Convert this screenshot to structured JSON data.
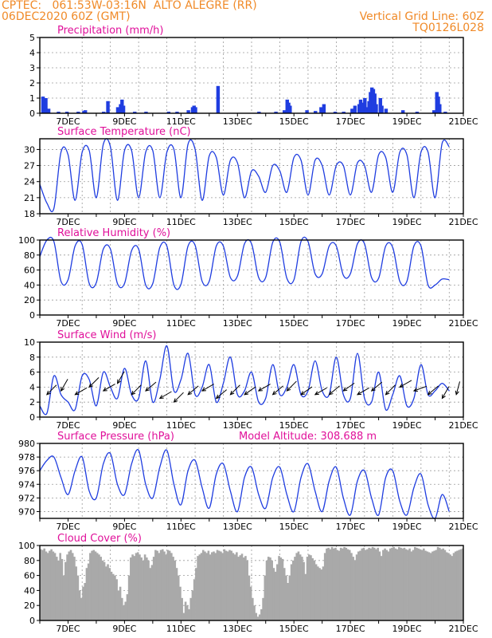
{
  "header": {
    "line1_left": "CPTEC:   061:53W-03:16N  ALTO ALEGRE (RR)",
    "line2_left": "06DEC2020 60Z (GMT)",
    "line1_right": "Vertical Grid Line: 60Z",
    "line2_right": "TQ0126L028"
  },
  "colors": {
    "header": "#f08a28",
    "title": "#e0109a",
    "series": "#1f3de0",
    "cloud": "#a9a9a9"
  },
  "x_ticks": [
    "7DEC",
    "9DEC",
    "11DEC",
    "13DEC",
    "15DEC",
    "17DEC",
    "19DEC",
    "21DEC"
  ],
  "chart_data": [
    {
      "id": "precip",
      "type": "bar",
      "title": "Precipitation (mm/h)",
      "ylim": [
        0,
        5
      ],
      "yticks": [
        0,
        1,
        2,
        3,
        4,
        5
      ],
      "xlim_days": [
        6.0,
        21.0
      ],
      "points": [
        [
          6.05,
          1.1
        ],
        [
          6.1,
          0.6
        ],
        [
          6.15,
          1.0
        ],
        [
          6.25,
          0.3
        ],
        [
          6.6,
          0.1
        ],
        [
          6.9,
          0.1
        ],
        [
          7.3,
          0.1
        ],
        [
          7.5,
          0.15
        ],
        [
          7.55,
          0.2
        ],
        [
          8.2,
          0.1
        ],
        [
          8.35,
          0.8
        ],
        [
          8.7,
          0.4
        ],
        [
          8.8,
          0.6
        ],
        [
          8.85,
          0.9
        ],
        [
          8.9,
          0.5
        ],
        [
          9.3,
          0.1
        ],
        [
          9.7,
          0.1
        ],
        [
          10.5,
          0.1
        ],
        [
          10.8,
          0.1
        ],
        [
          11.2,
          0.2
        ],
        [
          11.35,
          0.4
        ],
        [
          11.4,
          0.5
        ],
        [
          11.45,
          0.4
        ],
        [
          12.25,
          1.8
        ],
        [
          13.7,
          0.1
        ],
        [
          14.3,
          0.1
        ],
        [
          14.6,
          0.2
        ],
        [
          14.7,
          0.9
        ],
        [
          14.75,
          0.7
        ],
        [
          14.8,
          0.5
        ],
        [
          15.4,
          0.2
        ],
        [
          15.7,
          0.15
        ],
        [
          15.9,
          0.4
        ],
        [
          16.0,
          0.6
        ],
        [
          16.4,
          0.1
        ],
        [
          16.7,
          0.1
        ],
        [
          17.0,
          0.3
        ],
        [
          17.1,
          0.5
        ],
        [
          17.25,
          0.6
        ],
        [
          17.3,
          0.9
        ],
        [
          17.35,
          0.7
        ],
        [
          17.45,
          1.0
        ],
        [
          17.5,
          0.4
        ],
        [
          17.6,
          0.8
        ],
        [
          17.65,
          1.4
        ],
        [
          17.7,
          1.7
        ],
        [
          17.75,
          1.6
        ],
        [
          17.8,
          1.3
        ],
        [
          17.85,
          0.6
        ],
        [
          18.0,
          1.0
        ],
        [
          18.05,
          0.5
        ],
        [
          18.2,
          0.3
        ],
        [
          18.8,
          0.2
        ],
        [
          19.3,
          0.1
        ],
        [
          19.9,
          0.2
        ],
        [
          20.0,
          1.4
        ],
        [
          20.05,
          1.1
        ],
        [
          20.1,
          0.6
        ],
        [
          20.3,
          0.1
        ]
      ]
    },
    {
      "id": "temp",
      "type": "line",
      "title": "Surface Temperature (nC)",
      "ylim": [
        18,
        32
      ],
      "yticks": [
        18,
        21,
        24,
        27,
        30
      ],
      "x_start": 6.0,
      "x_step": 0.25,
      "values": [
        23.5,
        20.0,
        19.0,
        29.5,
        29.0,
        20.5,
        29.5,
        29.8,
        21.0,
        31.0,
        30.5,
        20.5,
        29.8,
        29.8,
        21.0,
        29.5,
        29.8,
        21.0,
        29.5,
        30.0,
        21.0,
        31.0,
        30.0,
        20.5,
        28.8,
        28.5,
        21.5,
        28.0,
        27.5,
        21.0,
        26.0,
        25.0,
        22.0,
        27.0,
        26.0,
        22.0,
        28.5,
        28.0,
        21.5,
        28.0,
        27.0,
        21.5,
        27.0,
        27.0,
        21.5,
        27.5,
        27.0,
        22.0,
        29.0,
        28.5,
        22.0,
        29.5,
        29.0,
        21.0,
        29.5,
        29.5,
        21.0,
        31.2,
        30.5
      ]
    },
    {
      "id": "rh",
      "type": "line",
      "title": "Relative Humidity (%)",
      "ylim": [
        0,
        100
      ],
      "yticks": [
        0,
        20,
        40,
        60,
        80,
        100
      ],
      "x_start": 6.0,
      "x_step": 0.25,
      "values": [
        78,
        100,
        98,
        45,
        47,
        92,
        94,
        42,
        43,
        88,
        88,
        42,
        42,
        86,
        88,
        40,
        42,
        90,
        92,
        40,
        41,
        92,
        93,
        45,
        45,
        92,
        92,
        50,
        52,
        95,
        95,
        50,
        50,
        97,
        97,
        49,
        47,
        98,
        98,
        55,
        55,
        92,
        92,
        53,
        55,
        95,
        95,
        50,
        49,
        92,
        90,
        45,
        45,
        92,
        92,
        40,
        40,
        48,
        47
      ]
    },
    {
      "id": "wind",
      "type": "line",
      "title": "Surface Wind (m/s)",
      "ylim": [
        0,
        10
      ],
      "yticks": [
        0,
        2,
        4,
        6,
        8,
        10
      ],
      "x_start": 6.0,
      "x_step": 0.25,
      "values": [
        1.5,
        0.5,
        5.5,
        3.0,
        2.0,
        1.0,
        5.5,
        5.0,
        1.5,
        6.0,
        4.0,
        2.5,
        6.5,
        3.0,
        2.5,
        7.5,
        2.0,
        5.0,
        9.5,
        3.5,
        5.0,
        8.5,
        3.0,
        4.0,
        7.0,
        2.0,
        4.5,
        8.0,
        3.0,
        3.5,
        6.0,
        2.0,
        2.5,
        7.0,
        3.0,
        4.0,
        7.0,
        3.0,
        3.5,
        7.5,
        3.5,
        3.0,
        8.0,
        3.0,
        2.5,
        8.5,
        2.5,
        2.0,
        6.0,
        1.0,
        3.0,
        5.5,
        1.5,
        2.5,
        7.0,
        3.0,
        3.5,
        4.5,
        3.5
      ]
    },
    {
      "id": "pres",
      "type": "line",
      "title": "Surface Pressure (hPa)",
      "subtitle": "Model Altitude: 308.688 m",
      "ylim": [
        969,
        980
      ],
      "yticks": [
        970,
        972,
        974,
        976,
        978,
        980
      ],
      "x_start": 6.0,
      "x_step": 0.25,
      "values": [
        976.0,
        977.5,
        978.0,
        975.0,
        972.5,
        976.0,
        978.0,
        973.0,
        972.0,
        977.0,
        978.5,
        974.0,
        972.5,
        977.0,
        979.0,
        974.0,
        972.0,
        976.5,
        979.0,
        974.0,
        971.0,
        976.0,
        977.5,
        973.5,
        970.5,
        975.5,
        977.0,
        973.0,
        970.0,
        975.0,
        976.5,
        972.5,
        970.5,
        975.0,
        976.5,
        972.5,
        970.0,
        975.0,
        977.0,
        973.0,
        970.0,
        974.5,
        976.5,
        972.0,
        969.5,
        974.5,
        976.0,
        972.0,
        969.5,
        975.0,
        976.0,
        971.5,
        969.5,
        973.5,
        975.5,
        971.0,
        969.0,
        972.5,
        970.0
      ]
    },
    {
      "id": "cloud",
      "type": "bar",
      "title": "Cloud Cover (%)",
      "ylim": [
        0,
        100
      ],
      "yticks": [
        0,
        20,
        40,
        60,
        80,
        100
      ],
      "x_start": 6.0,
      "x_step": 0.0625,
      "values": [
        95,
        94,
        96,
        92,
        90,
        93,
        95,
        92,
        90,
        85,
        80,
        90,
        82,
        60,
        78,
        88,
        92,
        94,
        90,
        85,
        72,
        60,
        40,
        30,
        45,
        50,
        70,
        76,
        90,
        93,
        94,
        92,
        90,
        88,
        85,
        80,
        78,
        72,
        75,
        70,
        65,
        62,
        60,
        55,
        40,
        45,
        30,
        20,
        25,
        35,
        60,
        84,
        88,
        86,
        90,
        91,
        88,
        84,
        80,
        88,
        84,
        80,
        70,
        74,
        85,
        94,
        93,
        90,
        94,
        95,
        92,
        88,
        94,
        93,
        90,
        85,
        80,
        70,
        60,
        45,
        30,
        10,
        25,
        20,
        15,
        30,
        40,
        55,
        70,
        86,
        88,
        90,
        94,
        92,
        90,
        93,
        88,
        91,
        92,
        90,
        94,
        93,
        92,
        90,
        95,
        93,
        92,
        94,
        93,
        90,
        88,
        91,
        85,
        87,
        89,
        84,
        86,
        80,
        60,
        45,
        30,
        20,
        10,
        5,
        8,
        15,
        30,
        60,
        80,
        85,
        84,
        80,
        70,
        65,
        75,
        86,
        84,
        82,
        70,
        60,
        50,
        60,
        75,
        80,
        85,
        90,
        92,
        88,
        85,
        78,
        62,
        85,
        88,
        87,
        83,
        80,
        75,
        72,
        70,
        68,
        72,
        90,
        96,
        97,
        95,
        98,
        96,
        97,
        94,
        93,
        97,
        96,
        98,
        97,
        95,
        94,
        90,
        85,
        80,
        88,
        92,
        93,
        96,
        97,
        94,
        95,
        97,
        96,
        98,
        97,
        95,
        97,
        92,
        86,
        94,
        96,
        94,
        92,
        96,
        97,
        98,
        96,
        95,
        98,
        97,
        96,
        97,
        95,
        94,
        96,
        92,
        94,
        98,
        97,
        96,
        95,
        94,
        96,
        93,
        92,
        91,
        90,
        92,
        93,
        94,
        98,
        97,
        95,
        96,
        94,
        91,
        90,
        88,
        86,
        90,
        92,
        93,
        94,
        95,
        96,
        98,
        97,
        95,
        94,
        96,
        92,
        90,
        88,
        86,
        84,
        92,
        94,
        96,
        97,
        98,
        96,
        97,
        95,
        97,
        96,
        94,
        92,
        90,
        94,
        96,
        97,
        95,
        94,
        90,
        88,
        86,
        84,
        80,
        76,
        72,
        68,
        65,
        60,
        58,
        55,
        60,
        70
      ]
    }
  ],
  "wind_vectors": {
    "x_start": 6.25,
    "x_step": 0.5,
    "points": [
      [
        6.25,
        3.0,
        315
      ],
      [
        6.75,
        3.5,
        300
      ],
      [
        7.25,
        3.0,
        330
      ],
      [
        7.75,
        4.0,
        315
      ],
      [
        8.25,
        3.5,
        330
      ],
      [
        8.75,
        4.5,
        300
      ],
      [
        9.25,
        3.0,
        315
      ],
      [
        9.75,
        3.5,
        320
      ],
      [
        10.25,
        2.5,
        330
      ],
      [
        10.75,
        2.0,
        315
      ],
      [
        11.25,
        3.0,
        320
      ],
      [
        11.75,
        3.5,
        330
      ],
      [
        12.25,
        2.5,
        320
      ],
      [
        12.75,
        3.0,
        315
      ],
      [
        13.25,
        3.0,
        325
      ],
      [
        13.75,
        3.5,
        330
      ],
      [
        14.25,
        3.0,
        320
      ],
      [
        14.75,
        3.5,
        315
      ],
      [
        15.25,
        3.0,
        325
      ],
      [
        15.75,
        3.0,
        330
      ],
      [
        16.25,
        3.0,
        320
      ],
      [
        16.75,
        3.5,
        325
      ],
      [
        17.25,
        3.0,
        330
      ],
      [
        17.75,
        3.5,
        320
      ],
      [
        18.25,
        3.0,
        315
      ],
      [
        18.75,
        4.0,
        330
      ],
      [
        19.25,
        3.5,
        340
      ],
      [
        19.75,
        3.0,
        320
      ],
      [
        20.25,
        2.5,
        300
      ],
      [
        20.75,
        3.0,
        285
      ]
    ]
  }
}
